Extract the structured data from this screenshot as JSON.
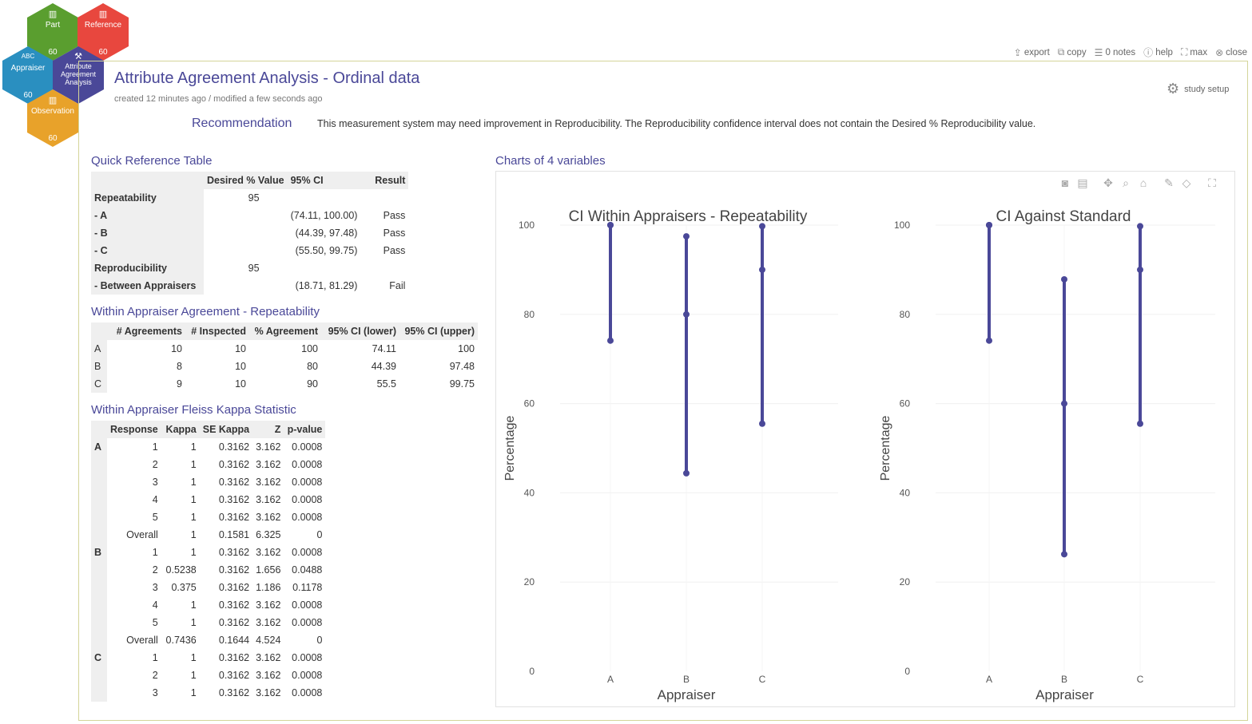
{
  "nav": {
    "hex_part": {
      "label": "Part",
      "count": "60",
      "color": "#5a9e2f"
    },
    "hex_reference": {
      "label": "Reference",
      "count": "60",
      "color": "#e8473e"
    },
    "hex_appraiser": {
      "label": "Appraiser",
      "tag": "ABC",
      "count": "60",
      "color": "#2a8fc0"
    },
    "hex_analysis": {
      "label": "Attribute Agreement Analysis",
      "color": "#4a4898"
    },
    "hex_observation": {
      "label": "Observation",
      "count": "60",
      "color": "#e8a22a"
    }
  },
  "toolbar": {
    "export": "export",
    "copy": "copy",
    "notes": "0 notes",
    "help": "help",
    "max": "max",
    "close": "close"
  },
  "header": {
    "title": "Attribute Agreement Analysis - Ordinal data",
    "subtitle": "created 12 minutes ago / modified a few seconds ago",
    "study_setup": "study setup"
  },
  "recommendation": {
    "label": "Recommendation",
    "text": "This measurement system may need improvement in Reproducibility. The Reproducibility confidence interval does not contain the Desired % Reproducibility value."
  },
  "quick_ref": {
    "title": "Quick Reference Table",
    "headers": [
      "",
      "Desired % Value",
      "95% CI",
      "Result"
    ],
    "rows": [
      [
        "Repeatability",
        "95",
        "",
        ""
      ],
      [
        "- A",
        "",
        "(74.11, 100.00)",
        "Pass"
      ],
      [
        "- B",
        "",
        "(44.39, 97.48)",
        "Pass"
      ],
      [
        "- C",
        "",
        "(55.50, 99.75)",
        "Pass"
      ],
      [
        "Reproducibility",
        "95",
        "",
        ""
      ],
      [
        "- Between Appraisers",
        "",
        "(18.71, 81.29)",
        "Fail"
      ]
    ]
  },
  "within": {
    "title": "Within Appraiser Agreement - Repeatability",
    "headers": [
      "",
      "# Agreements",
      "# Inspected",
      "% Agreement",
      "95% CI (lower)",
      "95% CI (upper)"
    ],
    "rows": [
      [
        "A",
        "10",
        "10",
        "100",
        "74.11",
        "100"
      ],
      [
        "B",
        "8",
        "10",
        "80",
        "44.39",
        "97.48"
      ],
      [
        "C",
        "9",
        "10",
        "90",
        "55.5",
        "99.75"
      ]
    ]
  },
  "kappa": {
    "title": "Within Appraiser Fleiss Kappa Statistic",
    "headers": [
      "",
      "Response",
      "Kappa",
      "SE Kappa",
      "Z",
      "p-value"
    ],
    "rows": [
      [
        "A",
        "1",
        "1",
        "0.3162",
        "3.162",
        "0.0008"
      ],
      [
        "",
        "2",
        "1",
        "0.3162",
        "3.162",
        "0.0008"
      ],
      [
        "",
        "3",
        "1",
        "0.3162",
        "3.162",
        "0.0008"
      ],
      [
        "",
        "4",
        "1",
        "0.3162",
        "3.162",
        "0.0008"
      ],
      [
        "",
        "5",
        "1",
        "0.3162",
        "3.162",
        "0.0008"
      ],
      [
        "",
        "Overall",
        "1",
        "0.1581",
        "6.325",
        "0"
      ],
      [
        "B",
        "1",
        "1",
        "0.3162",
        "3.162",
        "0.0008"
      ],
      [
        "",
        "2",
        "0.5238",
        "0.3162",
        "1.656",
        "0.0488"
      ],
      [
        "",
        "3",
        "0.375",
        "0.3162",
        "1.186",
        "0.1178"
      ],
      [
        "",
        "4",
        "1",
        "0.3162",
        "3.162",
        "0.0008"
      ],
      [
        "",
        "5",
        "1",
        "0.3162",
        "3.162",
        "0.0008"
      ],
      [
        "",
        "Overall",
        "0.7436",
        "0.1644",
        "4.524",
        "0"
      ],
      [
        "C",
        "1",
        "1",
        "0.3162",
        "3.162",
        "0.0008"
      ],
      [
        "",
        "2",
        "1",
        "0.3162",
        "3.162",
        "0.0008"
      ],
      [
        "",
        "3",
        "1",
        "0.3162",
        "3.162",
        "0.0008"
      ]
    ]
  },
  "charts_title": "Charts of 4 variables",
  "chart_tools": [
    "camera-icon",
    "compare-icon",
    "pan-icon",
    "zoom-icon",
    "home-icon",
    "draw-icon",
    "eraser-icon",
    "fullscreen-icon"
  ],
  "chart_data": [
    {
      "type": "scatter",
      "title": "CI Within Appraisers - Repeatability",
      "xlabel": "Appraiser",
      "ylabel": "Percentage",
      "categories": [
        "A",
        "B",
        "C"
      ],
      "ylim": [
        0,
        100
      ],
      "yticks": [
        0,
        20,
        40,
        60,
        80,
        100
      ],
      "color": "#4a4898",
      "series": [
        {
          "x": "A",
          "lower": 74.11,
          "point": 100,
          "upper": 100
        },
        {
          "x": "B",
          "lower": 44.39,
          "point": 80,
          "upper": 97.48
        },
        {
          "x": "C",
          "lower": 55.5,
          "point": 90,
          "upper": 99.75
        }
      ]
    },
    {
      "type": "scatter",
      "title": "CI Against Standard",
      "xlabel": "Appraiser",
      "ylabel": "Percentage",
      "categories": [
        "A",
        "B",
        "C"
      ],
      "ylim": [
        0,
        100
      ],
      "yticks": [
        0,
        20,
        40,
        60,
        80,
        100
      ],
      "color": "#4a4898",
      "series": [
        {
          "x": "A",
          "lower": 74.11,
          "point": 100,
          "upper": 100
        },
        {
          "x": "B",
          "lower": 26.24,
          "point": 60,
          "upper": 87.84
        },
        {
          "x": "C",
          "lower": 55.5,
          "point": 90,
          "upper": 99.75
        }
      ]
    }
  ]
}
